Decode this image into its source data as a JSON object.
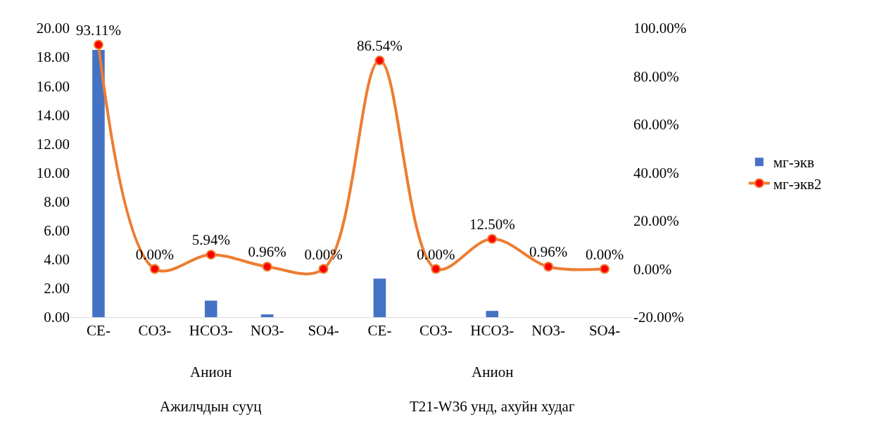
{
  "chart_data": {
    "type": "bar",
    "categories": [
      "CE-",
      "CO3-",
      "HCO3-",
      "NO3-",
      "SO4-",
      "CE-",
      "CO3-",
      "HCO3-",
      "NO3-",
      "SO4-"
    ],
    "series": [
      {
        "name": "мг-экв",
        "color": "#4472c4",
        "values": [
          18.49,
          0,
          1.14,
          0.19,
          0,
          2.67,
          0,
          0.43,
          0,
          0
        ]
      },
      {
        "name": "мг-экв2",
        "type": "line",
        "axis": "y2",
        "color": "#ed7d31",
        "marker": "circle",
        "values": [
          93.11,
          0,
          5.94,
          0.96,
          0,
          86.54,
          0,
          12.5,
          0.96,
          0
        ],
        "value_labels": [
          "93.11%",
          "0.00%",
          "5.94%",
          "0.96%",
          "0.00%",
          "86.54%",
          "0.00%",
          "12.50%",
          "0.96%",
          "0.00%"
        ]
      }
    ],
    "annotations": [
      "Анион",
      "Анион",
      "Ажилчдын сууц",
      "T21-W36 унд, ахуйн худаг"
    ],
    "ylim": [
      0,
      20
    ],
    "yticks": [
      {
        "value": 0,
        "label": "0.00"
      },
      {
        "value": 2,
        "label": "2.00"
      },
      {
        "value": 4,
        "label": "4.00"
      },
      {
        "value": 6,
        "label": "6.00"
      },
      {
        "value": 8,
        "label": "8.00"
      },
      {
        "value": 10,
        "label": "10.00"
      },
      {
        "value": 12,
        "label": "12.00"
      },
      {
        "value": 14,
        "label": "14.00"
      },
      {
        "value": 16,
        "label": "16.00"
      },
      {
        "value": 18,
        "label": "18.00"
      },
      {
        "value": 20,
        "label": "20.00"
      }
    ],
    "y2lim": [
      -20,
      100
    ],
    "y2ticks": [
      {
        "value": -20,
        "label": "-20.00%"
      },
      {
        "value": 0,
        "label": "0.00%"
      },
      {
        "value": 20,
        "label": "20.00%"
      },
      {
        "value": 40,
        "label": "40.00%"
      },
      {
        "value": 60,
        "label": "60.00%"
      },
      {
        "value": 80,
        "label": "80.00%"
      },
      {
        "value": 100,
        "label": "100.00%"
      }
    ],
    "grid": false,
    "legend": "right"
  }
}
